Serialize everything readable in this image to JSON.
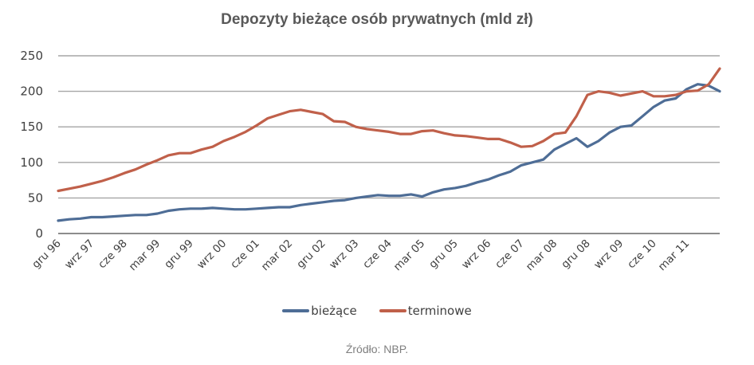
{
  "title": "Depozyty bieżące osób prywatnych (mld zł)",
  "source": "Źródło: NBP.",
  "legend": [
    {
      "label": "bieżące",
      "color": "#4e6d96"
    },
    {
      "label": "terminowe",
      "color": "#c0604a"
    }
  ],
  "chart_data": {
    "type": "line",
    "title": "Depozyty bieżące osób prywatnych (mld zł)",
    "xlabel": "",
    "ylabel": "",
    "ylim": [
      0,
      250
    ],
    "yticks": [
      0,
      50,
      100,
      150,
      200,
      250
    ],
    "grid": true,
    "legend_position": "bottom",
    "x_tick_labels": [
      "gru 96",
      "wrz 97",
      "cze 98",
      "mar 99",
      "gru 99",
      "wrz 00",
      "cze 01",
      "mar 02",
      "gru 02",
      "wrz 03",
      "cze 04",
      "mar 05",
      "gru 05",
      "wrz 06",
      "cze 07",
      "mar 08",
      "gru 08",
      "wrz 09",
      "cze 10",
      "mar 11"
    ],
    "x": [
      "gru 96",
      "mar 97",
      "cze 97",
      "wrz 97",
      "gru 97",
      "mar 98",
      "cze 98",
      "wrz 98",
      "gru 98",
      "mar 99",
      "cze 99",
      "wrz 99",
      "gru 99",
      "mar 00",
      "cze 00",
      "wrz 00",
      "gru 00",
      "mar 01",
      "cze 01",
      "wrz 01",
      "gru 01",
      "mar 02",
      "cze 02",
      "wrz 02",
      "gru 02",
      "mar 03",
      "cze 03",
      "wrz 03",
      "gru 03",
      "mar 04",
      "cze 04",
      "wrz 04",
      "gru 04",
      "mar 05",
      "cze 05",
      "wrz 05",
      "gru 05",
      "mar 06",
      "cze 06",
      "wrz 06",
      "gru 06",
      "mar 07",
      "cze 07",
      "wrz 07",
      "gru 07",
      "mar 08",
      "cze 08",
      "wrz 08",
      "gru 08",
      "mar 09",
      "cze 09",
      "wrz 09",
      "gru 09",
      "mar 10",
      "cze 10",
      "wrz 10",
      "gru 10",
      "mar 11",
      "cze 11",
      "wrz 11",
      "gru 11"
    ],
    "series": [
      {
        "name": "bieżące",
        "color": "#4e6d96",
        "values": [
          18,
          20,
          21,
          23,
          23,
          24,
          25,
          26,
          26,
          28,
          32,
          34,
          35,
          35,
          36,
          35,
          34,
          34,
          35,
          36,
          37,
          37,
          40,
          42,
          44,
          46,
          47,
          50,
          52,
          54,
          53,
          53,
          55,
          52,
          58,
          62,
          64,
          67,
          72,
          76,
          82,
          87,
          96,
          100,
          104,
          118,
          126,
          134,
          122,
          130,
          142,
          150,
          152,
          165,
          178,
          187,
          190,
          203,
          210,
          208,
          200
        ]
      },
      {
        "name": "terminowe",
        "color": "#c0604a",
        "values": [
          60,
          63,
          66,
          70,
          74,
          79,
          85,
          90,
          97,
          103,
          110,
          113,
          113,
          118,
          122,
          130,
          136,
          143,
          152,
          162,
          167,
          172,
          174,
          171,
          168,
          158,
          157,
          150,
          147,
          145,
          143,
          140,
          140,
          144,
          145,
          141,
          138,
          137,
          135,
          133,
          133,
          128,
          122,
          123,
          130,
          140,
          142,
          165,
          195,
          200,
          198,
          194,
          197,
          200,
          193,
          193,
          195,
          200,
          201,
          210,
          232
        ]
      }
    ]
  }
}
